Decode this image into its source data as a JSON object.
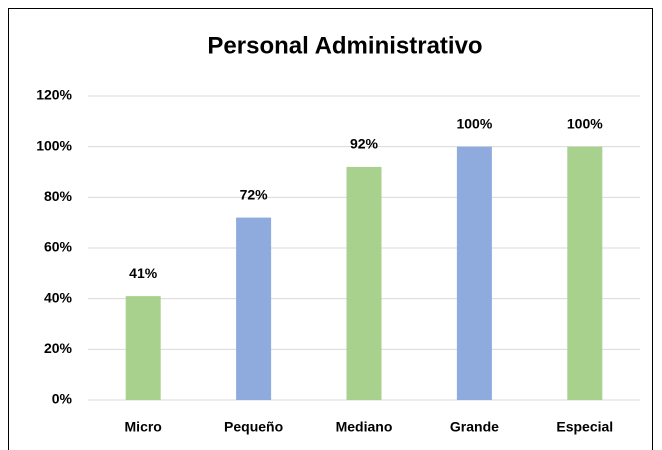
{
  "chart_data": {
    "type": "bar",
    "title": "Personal Administrativo",
    "categories": [
      "Micro",
      "Pequeño",
      "Mediano",
      "Grande",
      "Especial"
    ],
    "values": [
      41,
      72,
      92,
      100,
      100
    ],
    "value_labels": [
      "41%",
      "72%",
      "92%",
      "100%",
      "100%"
    ],
    "colors": [
      "#a9d18e",
      "#8faadc",
      "#a9d18e",
      "#8faadc",
      "#a9d18e"
    ],
    "ylim": [
      0,
      120
    ],
    "yticks": [
      {
        "value": 0,
        "label": "0%"
      },
      {
        "value": 20,
        "label": "20%"
      },
      {
        "value": 40,
        "label": "40%"
      },
      {
        "value": 60,
        "label": "60%"
      },
      {
        "value": 80,
        "label": "80%"
      },
      {
        "value": 100,
        "label": "100%"
      },
      {
        "value": 120,
        "label": "120%"
      }
    ],
    "grid": true
  }
}
